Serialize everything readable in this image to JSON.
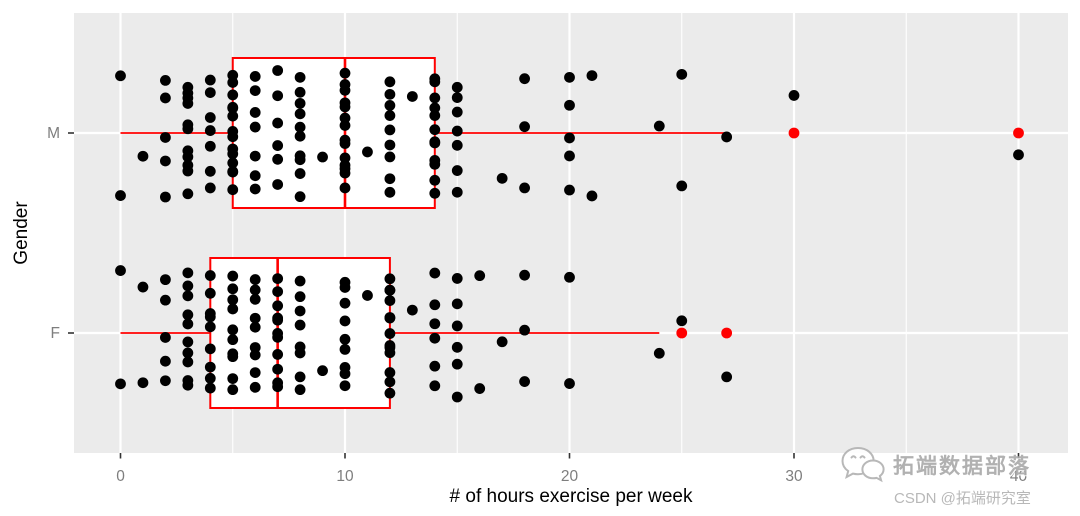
{
  "watermark": {
    "brand": "拓端数据部落",
    "csdn_line": "CSDN @拓端研究室",
    "icon": "wechat-icon"
  },
  "colors": {
    "panel_background": "#ebebeb",
    "gridline": "#ffffff",
    "box_stroke": "#ff0000",
    "box_fill": "#ffffff",
    "point": "#000000",
    "outlier": "#ff0000",
    "tick_mark": "#333333",
    "tick_label": "#7e7e7e",
    "axis_title": "#000000",
    "watermark_gray": "#ababab"
  },
  "chart_data": {
    "type": "boxplot",
    "subtype": "boxplot-with-jittered-points",
    "orientation": "horizontal",
    "title": "",
    "xlabel": "# of hours exercise per week",
    "ylabel": "Gender",
    "categories": [
      "M",
      "F"
    ],
    "x_ticks": [
      0,
      10,
      20,
      30,
      40
    ],
    "x_minor_ticks": [
      5,
      15,
      25,
      35
    ],
    "xlim": [
      -2.1,
      42.2
    ],
    "grid": true,
    "series": [
      {
        "name": "M",
        "q1": 5,
        "median": 10,
        "q3": 14,
        "whisker_low": 0,
        "whisker_high": 27,
        "outliers": [
          30,
          40
        ],
        "jitter_counts": {
          "0": 2,
          "1": 1,
          "2": 5,
          "3": 11,
          "4": 7,
          "5": 14,
          "6": 7,
          "7": 6,
          "8": 10,
          "9": 1,
          "10": 14,
          "11": 1,
          "12": 9,
          "13": 1,
          "14": 12,
          "15": 7,
          "17": 1,
          "18": 3,
          "20": 5,
          "21": 2,
          "24": 1,
          "25": 2,
          "27": 1,
          "30": 1,
          "40": 1
        }
      },
      {
        "name": "F",
        "q1": 4,
        "median": 7,
        "q3": 12,
        "whisker_low": 0,
        "whisker_high": 24,
        "outliers": [
          25,
          27
        ],
        "jitter_counts": {
          "0": 2,
          "1": 2,
          "2": 5,
          "3": 10,
          "4": 9,
          "5": 10,
          "6": 9,
          "7": 11,
          "8": 8,
          "9": 1,
          "10": 9,
          "11": 1,
          "12": 13,
          "13": 1,
          "14": 6,
          "15": 6,
          "16": 2,
          "17": 1,
          "18": 3,
          "20": 2,
          "24": 1,
          "25": 1,
          "27": 1
        }
      }
    ]
  }
}
